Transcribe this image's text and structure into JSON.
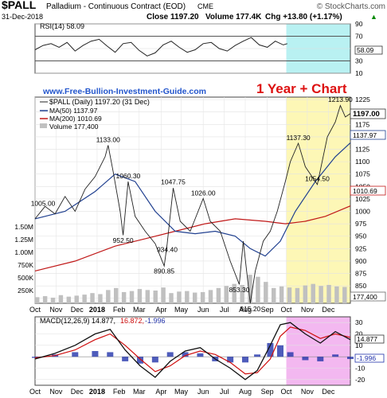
{
  "header": {
    "symbol": "$PALL",
    "description": "Palladium - Continuous Contract (EOD)",
    "exchange": "CME",
    "watermark": "© StockCharts.com",
    "date": "31-Dec-2018",
    "close_label": "Close 1197.20",
    "volume_label": "Volume 177.4K",
    "chg_label": "Chg +13.80 (+1.17%)",
    "chg_arrow": "▲"
  },
  "overlay": {
    "site": "www.Free-Bullion-Investment-Guide.com",
    "highlight": "1 Year + Chart"
  },
  "colors": {
    "price": "#222222",
    "ma50": "#1f3f8f",
    "ma200": "#c01818",
    "volume": "#c0c0c0",
    "rsi": "#222222",
    "macd": "#111111",
    "signal": "#d01010",
    "histogram": "#2233aa",
    "highlight_yellow": "#fdf7b6",
    "highlight_cyan": "#b9f1f2",
    "highlight_pink": "#f3b8f0",
    "overlay_text": "#2255cc",
    "highlight_text": "#dd1111"
  },
  "chart_data": [
    {
      "type": "line",
      "panel": "rsi",
      "legend": "RSI(14) 58.09",
      "yticks": [
        10,
        30,
        50,
        70,
        90
      ],
      "ylim": [
        10,
        90
      ],
      "reference_lines": [
        30,
        70
      ],
      "current_value_label": "58.09",
      "x": [
        0,
        8,
        16,
        24,
        32,
        40,
        48,
        56,
        64,
        72,
        80,
        88,
        96,
        104,
        112,
        120,
        128,
        136,
        144,
        152,
        160,
        168,
        176,
        184,
        192,
        200,
        208,
        216,
        224,
        232,
        240,
        248,
        252
      ],
      "values": [
        48,
        55,
        58,
        52,
        60,
        46,
        55,
        62,
        65,
        54,
        44,
        58,
        60,
        47,
        38,
        43,
        56,
        62,
        52,
        44,
        48,
        58,
        60,
        50,
        46,
        55,
        62,
        68,
        56,
        52,
        62,
        56,
        58
      ]
    },
    {
      "type": "line",
      "panel": "price",
      "legend": [
        "$PALL (Daily) 1197.20 (31 Dec)",
        "MA(50) 1137.97",
        "MA(200) 1010.69",
        "Volume 177,400"
      ],
      "yticks": [
        825,
        850,
        875,
        900,
        925,
        950,
        975,
        1000,
        1025,
        1050,
        1075,
        1100,
        1125,
        1150,
        1175,
        1200,
        1225
      ],
      "ylim": [
        815,
        1230
      ],
      "volume_ticks": [
        "250K",
        "500K",
        "750K",
        "1.00M",
        "1.25M",
        "1.50M"
      ],
      "xticks": [
        "Oct",
        "Nov",
        "Dec",
        "2018",
        "Feb",
        "Mar",
        "Apr",
        "May",
        "Jun",
        "Jul",
        "Aug",
        "Sep",
        "Oct",
        "Nov",
        "Dec"
      ],
      "xtick_positions": [
        0,
        21,
        42,
        62,
        84,
        104,
        126,
        146,
        168,
        189,
        210,
        232,
        251,
        272,
        293
      ],
      "x_range": [
        0,
        315
      ],
      "highlight_range": [
        251,
        315
      ],
      "annotations": [
        {
          "x": 8,
          "y": 1005.0,
          "text": "1005.00"
        },
        {
          "x": 73,
          "y": 1133.0,
          "text": "1133.00"
        },
        {
          "x": 93,
          "y": 1060.3,
          "text": "1060.30"
        },
        {
          "x": 88,
          "y": 952.5,
          "text": "952.50"
        },
        {
          "x": 138,
          "y": 1047.75,
          "text": "1047.75"
        },
        {
          "x": 132,
          "y": 934.4,
          "text": "934.40"
        },
        {
          "x": 129,
          "y": 890.85,
          "text": "890.85"
        },
        {
          "x": 168,
          "y": 1026.0,
          "text": "1026.00"
        },
        {
          "x": 204,
          "y": 853.3,
          "text": "853.30"
        },
        {
          "x": 215,
          "y": 815.2,
          "text": "815.20"
        },
        {
          "x": 263,
          "y": 1137.3,
          "text": "1137.30"
        },
        {
          "x": 282,
          "y": 1054.5,
          "text": "1054.50"
        },
        {
          "x": 305,
          "y": 1213.9,
          "text": "1213.90"
        }
      ],
      "series": [
        {
          "name": "$PALL",
          "x": [
            0,
            10,
            20,
            30,
            40,
            50,
            60,
            70,
            73,
            78,
            85,
            88,
            93,
            100,
            110,
            120,
            129,
            132,
            138,
            145,
            155,
            168,
            175,
            185,
            195,
            204,
            208,
            215,
            220,
            228,
            235,
            242,
            250,
            255,
            263,
            270,
            282,
            292,
            300,
            305,
            310,
            315
          ],
          "values": [
            985,
            1010,
            995,
            1030,
            1000,
            1045,
            1070,
            1110,
            1133,
            1080,
            1000,
            952,
            1060,
            990,
            960,
            935,
            890,
            934,
            1047,
            980,
            960,
            1026,
            980,
            960,
            900,
            853,
            940,
            815,
            880,
            940,
            960,
            1000,
            1060,
            1100,
            1137,
            1090,
            1054,
            1150,
            1180,
            1213,
            1190,
            1197
          ]
        },
        {
          "name": "MA(50)",
          "x": [
            0,
            30,
            60,
            80,
            100,
            120,
            140,
            160,
            180,
            200,
            215,
            230,
            245,
            260,
            280,
            300,
            315
          ],
          "values": [
            985,
            1000,
            1040,
            1075,
            1060,
            1000,
            960,
            955,
            960,
            950,
            925,
            910,
            940,
            1000,
            1060,
            1110,
            1138
          ]
        },
        {
          "name": "MA(200)",
          "x": [
            0,
            40,
            80,
            110,
            140,
            170,
            200,
            230,
            250,
            270,
            290,
            315
          ],
          "values": [
            880,
            900,
            930,
            945,
            960,
            975,
            985,
            980,
            975,
            980,
            990,
            1011
          ]
        }
      ],
      "volume_values": [
        120,
        140,
        110,
        160,
        130,
        150,
        170,
        200,
        180,
        260,
        300,
        220,
        240,
        280,
        260,
        250,
        310,
        200,
        230,
        240,
        210,
        220,
        260,
        300,
        340,
        380,
        360,
        560,
        520,
        420,
        300,
        330,
        310,
        300,
        350,
        380,
        340,
        360,
        330,
        320
      ]
    },
    {
      "type": "line",
      "panel": "macd",
      "legend": [
        "MACD(12,26,9) 14.877,",
        "16.872,",
        "-1.996"
      ],
      "yticks": [
        -20,
        -10,
        0,
        10,
        20,
        30
      ],
      "ylim": [
        -25,
        35
      ],
      "current_value_labels": [
        "14.877",
        "-1.996"
      ],
      "xticks": [
        "Oct",
        "Nov",
        "Dec",
        "2018",
        "Feb",
        "Mar",
        "Apr",
        "May",
        "Jun",
        "Jul",
        "Aug",
        "Sep",
        "Oct",
        "Nov",
        "Dec"
      ],
      "highlight_range": [
        251,
        315
      ],
      "series": [
        {
          "name": "MACD",
          "x": [
            0,
            20,
            40,
            60,
            75,
            90,
            105,
            120,
            135,
            150,
            165,
            180,
            195,
            210,
            222,
            235,
            245,
            255,
            270,
            285,
            300,
            315
          ],
          "values": [
            -2,
            3,
            10,
            20,
            24,
            6,
            -8,
            -18,
            -4,
            5,
            8,
            -2,
            -10,
            -20,
            -12,
            10,
            28,
            30,
            20,
            12,
            22,
            15
          ]
        },
        {
          "name": "Signal",
          "x": [
            0,
            20,
            40,
            60,
            75,
            90,
            105,
            120,
            135,
            150,
            165,
            180,
            195,
            210,
            222,
            235,
            245,
            255,
            270,
            285,
            300,
            315
          ],
          "values": [
            -1,
            1,
            6,
            15,
            20,
            10,
            -2,
            -13,
            -8,
            1,
            5,
            2,
            -5,
            -15,
            -14,
            -2,
            18,
            26,
            23,
            16,
            20,
            17
          ]
        }
      ],
      "histogram": [
        -1,
        2,
        4,
        5,
        4,
        -4,
        -6,
        -5,
        4,
        4,
        3,
        -4,
        -5,
        -5,
        2,
        12,
        10,
        4,
        -3,
        -4,
        2,
        -2
      ]
    }
  ]
}
